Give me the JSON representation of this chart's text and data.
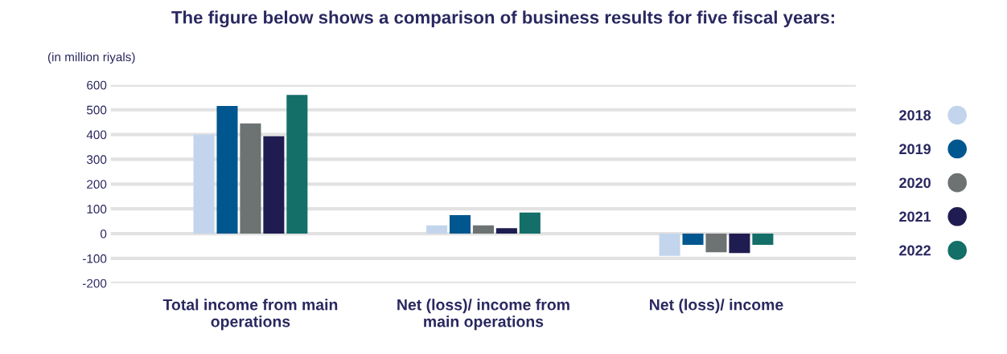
{
  "chart_data": {
    "type": "bar",
    "title": "The figure below shows a comparison of business results for five fiscal years:",
    "ylabel": "(in million riyals)",
    "categories": [
      "Total income from main\noperations",
      "Net (loss)/ income from\nmain operations",
      "Net (loss)/ income"
    ],
    "series": [
      {
        "name": "2018",
        "color": "#c2d5ec",
        "values": [
          400,
          33,
          -90
        ]
      },
      {
        "name": "2019",
        "color": "#00568f",
        "values": [
          515,
          75,
          -45
        ]
      },
      {
        "name": "2020",
        "color": "#6d7272",
        "values": [
          445,
          33,
          -75
        ]
      },
      {
        "name": "2021",
        "color": "#1f1c51",
        "values": [
          393,
          22,
          -78
        ]
      },
      {
        "name": "2022",
        "color": "#136f68",
        "values": [
          560,
          85,
          -45
        ]
      }
    ],
    "ylim": [
      -200,
      600
    ],
    "yticks": [
      -200,
      -100,
      0,
      100,
      200,
      300,
      400,
      500,
      600
    ],
    "grid": "y",
    "legend": "right"
  }
}
